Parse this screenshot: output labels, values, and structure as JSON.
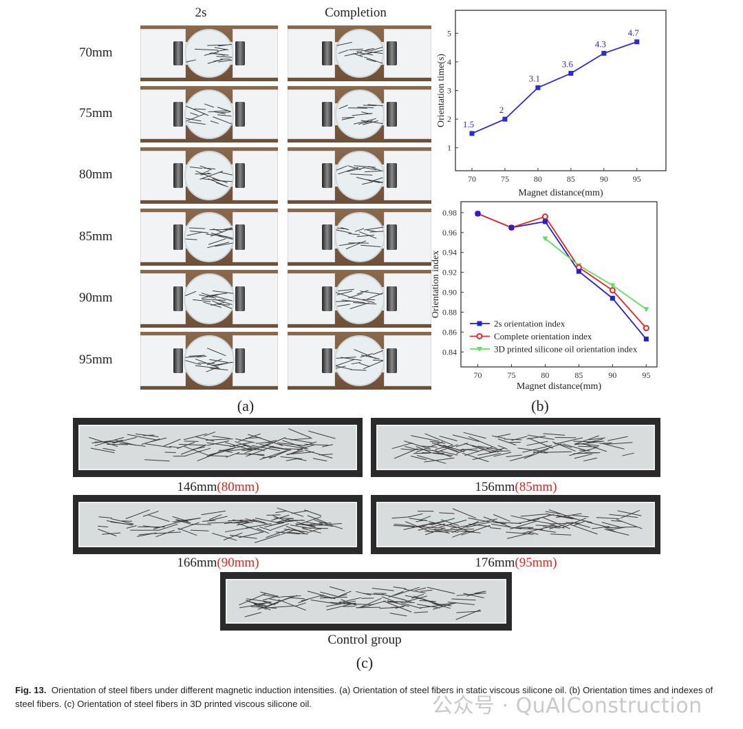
{
  "panel_a": {
    "column_headers": [
      "2s",
      "Completion"
    ],
    "row_labels": [
      "70mm",
      "75mm",
      "80mm",
      "85mm",
      "90mm",
      "95mm"
    ],
    "panel_label": "(a)"
  },
  "panel_b": {
    "panel_label": "(b)"
  },
  "panel_c": {
    "items": [
      {
        "label": "146mm",
        "sub": "(80mm)"
      },
      {
        "label": "156mm",
        "sub": "(85mm)"
      },
      {
        "label": "166mm",
        "sub": "(90mm)"
      },
      {
        "label": "176mm",
        "sub": "(95mm)"
      },
      {
        "label": "Control group",
        "sub": ""
      }
    ],
    "panel_label": "(c)",
    "highlight_color": "#e8211c"
  },
  "chart_data": [
    {
      "type": "line",
      "xlabel": "Magnet distance(mm)",
      "ylabel": "Orientation time(s)",
      "x": [
        70,
        75,
        80,
        85,
        90,
        95
      ],
      "xticks": [
        "70",
        "75",
        "80",
        "85",
        "90",
        "95"
      ],
      "yticks": [
        "1",
        "2",
        "3",
        "4",
        "5"
      ],
      "xlim": [
        67.5,
        99.4
      ],
      "ylim": [
        0.2,
        5.8
      ],
      "series": [
        {
          "values": [
            1.5,
            2,
            3.1,
            3.6,
            4.3,
            4.7
          ],
          "color": "#2a2ad8",
          "marker": "square"
        }
      ],
      "data_labels": [
        "1.5",
        "2",
        "3.1",
        "3.6",
        "4.3",
        "4.7"
      ],
      "grid": false
    },
    {
      "type": "line",
      "xlabel": "Magnet distance(mm)",
      "ylabel": "Orientation index",
      "x": [
        70,
        75,
        80,
        85,
        90,
        95
      ],
      "xticks": [
        "70",
        "75",
        "80",
        "85",
        "90",
        "95"
      ],
      "yticks": [
        "0.84",
        "0.86",
        "0.88",
        "0.90",
        "0.92",
        "0.94",
        "0.96",
        "0.98"
      ],
      "xlim": [
        67.5,
        96.6
      ],
      "ylim": [
        0.825,
        0.991
      ],
      "legend_placement": "bottom-left",
      "grid": false,
      "series": [
        {
          "name": "2s orientation index",
          "x": [
            70,
            75,
            80,
            85,
            90,
            95
          ],
          "values": [
            0.979,
            0.965,
            0.971,
            0.921,
            0.894,
            0.853
          ],
          "color": "#1f1fe0",
          "marker": "square"
        },
        {
          "name": "Complete orientation index",
          "x": [
            70,
            75,
            80,
            85,
            90,
            95
          ],
          "values": [
            0.979,
            0.965,
            0.976,
            0.925,
            0.902,
            0.864
          ],
          "color": "#f02020",
          "marker": "circle"
        },
        {
          "name": "3D printed silicone oil orientation index",
          "x": [
            80,
            85,
            90,
            95
          ],
          "values": [
            0.954,
            0.927,
            0.907,
            0.883
          ],
          "color": "#5ee05e",
          "marker": "triangle-down"
        }
      ]
    }
  ],
  "caption": {
    "fig": "Fig. 13.",
    "text": "Orientation of steel fibers under different magnetic induction intensities. (a) Orientation of steel fibers in static viscous silicone oil. (b) Orientation times and indexes of steel fibers. (c) Orientation of steel fibers in 3D printed viscous silicone oil."
  },
  "watermark": "公众号 · QuAIConstruction"
}
